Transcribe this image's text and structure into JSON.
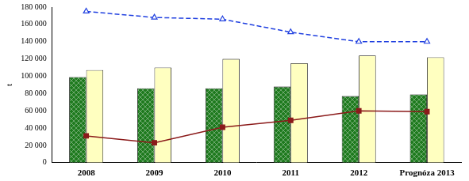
{
  "chart_data": {
    "type": "bar",
    "y_label": "t",
    "categories": [
      "2008",
      "2009",
      "2010",
      "2011",
      "2012",
      "Prognóza 2013"
    ],
    "series": [
      {
        "type": "bar",
        "color": "#1e7a1e",
        "values": [
          99000,
          86000,
          86000,
          88000,
          77000,
          79000
        ]
      },
      {
        "type": "bar",
        "color": "#ffffc0",
        "values": [
          107000,
          110000,
          120000,
          115000,
          124000,
          122000
        ]
      },
      {
        "type": "line",
        "color": "#2040e0",
        "marker": "triangle",
        "line_style": "dashed",
        "values": [
          175000,
          168000,
          166000,
          151000,
          140000,
          140000
        ]
      },
      {
        "type": "line",
        "color": "#8b1a1a",
        "marker": "square",
        "line_style": "solid",
        "values": [
          31000,
          23000,
          41000,
          49000,
          60000,
          59000
        ]
      }
    ],
    "ylim": [
      0,
      180000
    ],
    "yticks": [
      0,
      {
        "value": 20000,
        "label": "20 000"
      },
      {
        "value": 40000,
        "label": "40 000"
      },
      {
        "value": 60000,
        "label": "60 000"
      },
      {
        "value": 80000,
        "label": "80 000"
      },
      {
        "value": 100000,
        "label": "100 000"
      },
      {
        "value": 120000,
        "label": "120 000"
      },
      {
        "value": 140000,
        "label": "140 000"
      },
      {
        "value": 160000,
        "label": "160 000"
      },
      {
        "value": 180000,
        "label": "180 000"
      }
    ],
    "grid": false
  }
}
